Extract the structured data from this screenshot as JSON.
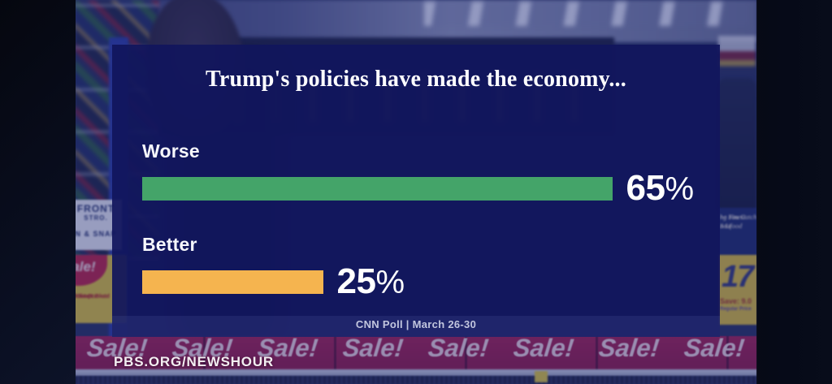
{
  "chart_data": {
    "type": "bar",
    "orientation": "horizontal",
    "title": "Trump's policies have made the economy...",
    "categories": [
      "Worse",
      "Better"
    ],
    "values": [
      65,
      25
    ],
    "value_labels": [
      "65%",
      "25%"
    ],
    "percent_sign": "%",
    "bar_colors": [
      "#44a469",
      "#f5b44f"
    ],
    "xlim": [
      0,
      100
    ],
    "grid": false,
    "legend": false,
    "source_note": "CNN Poll | March 26-30"
  },
  "watermark": {
    "text": "PBS.ORG/NEWSHOUR"
  },
  "colors": {
    "panel_navy": "#11165c",
    "bar_green": "#44a469",
    "bar_orange": "#f5b44f",
    "sale_banner_red": "#9c2150"
  },
  "background_scene": {
    "sale_banner_text": "Sale!",
    "left_sign": {
      "line1": "FRONT",
      "line2": "STRO.",
      "line3": "N & SNAP"
    },
    "left_tag": {
      "sale": "ale!",
      "line1": "terfront Bistr",
      "line2": "-30ct Cooked",
      "line3": "shrimp"
    },
    "right_sign": {
      "line1": "ng You Catch a Li",
      "line2": "he Finest Seafood"
    },
    "right_tag": {
      "price": "17",
      "save": "Save: 9.0",
      "regular": "Regular Price"
    }
  }
}
